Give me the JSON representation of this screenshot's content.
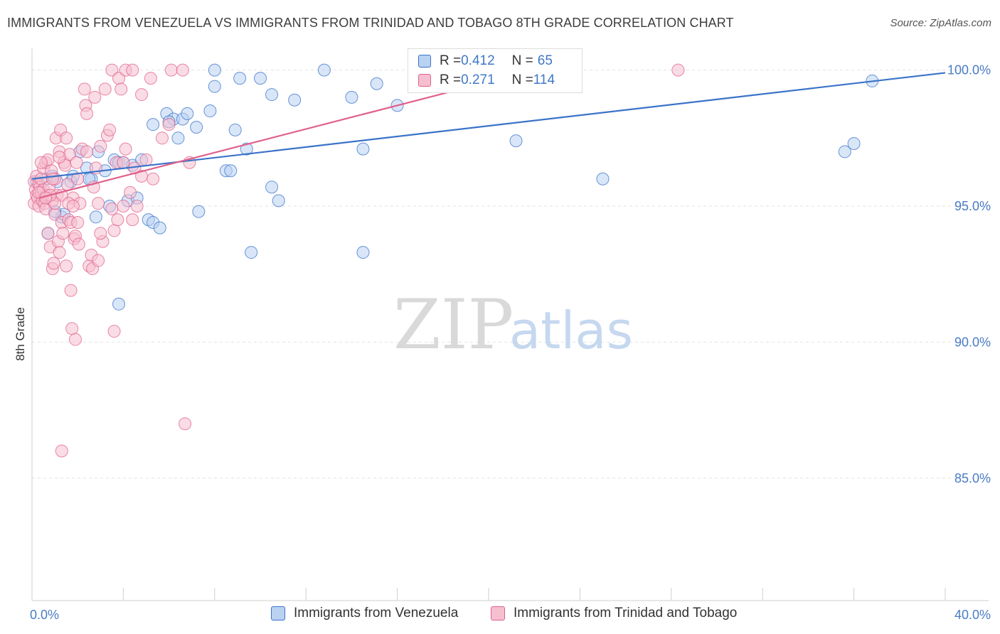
{
  "title": "IMMIGRANTS FROM VENEZUELA VS IMMIGRANTS FROM TRINIDAD AND TOBAGO 8TH GRADE CORRELATION CHART",
  "source": "Source: ZipAtlas.com",
  "watermark": {
    "zip": "ZIP",
    "atlas": "atlas"
  },
  "colors": {
    "blue": "#3a73c9",
    "blue_fill": "#b9d2f2",
    "pink": "#e0618c",
    "pink_fill": "#f6bfd0",
    "tick_label": "#4a7cc4",
    "grid": "#e2e2e2"
  },
  "legend": {
    "rows": [
      {
        "r_label": "R = ",
        "r_value": "0.412",
        "n_label": "N = ",
        "n_value": "65"
      },
      {
        "r_label": "R = ",
        "r_value": "0.271",
        "n_label": "N = ",
        "n_value": "114"
      }
    ]
  },
  "chart_data": {
    "type": "scatter",
    "title": "IMMIGRANTS FROM VENEZUELA VS IMMIGRANTS FROM TRINIDAD AND TOBAGO 8TH GRADE CORRELATION CHART",
    "xlabel": "",
    "ylabel": "8th Grade",
    "xlim": [
      0,
      40
    ],
    "ylim": [
      80.5,
      100.8
    ],
    "x_tick_labels": [
      "0.0%",
      "40.0%"
    ],
    "x_tick_values": [
      0,
      40
    ],
    "x_minor_ticks": [
      4,
      8,
      12,
      16,
      20,
      24,
      28,
      32,
      36
    ],
    "y_ticks": [
      {
        "value": 100,
        "label": "100.0%"
      },
      {
        "value": 95,
        "label": "95.0%"
      },
      {
        "value": 90,
        "label": "90.0%"
      },
      {
        "value": 85,
        "label": "85.0%"
      }
    ],
    "grid": "horizontal dashed",
    "legend_position": "bottom",
    "series": [
      {
        "name": "Immigrants from Venezuela",
        "color": "blue",
        "trend": {
          "x": [
            0,
            40
          ],
          "y": [
            96.0,
            99.9
          ]
        },
        "points": [
          [
            0.2,
            95.9
          ],
          [
            0.4,
            95.3
          ],
          [
            0.6,
            96.0
          ],
          [
            0.7,
            94.0
          ],
          [
            0.9,
            96.1
          ],
          [
            1.1,
            95.9
          ],
          [
            1.3,
            94.6
          ],
          [
            1.4,
            94.7
          ],
          [
            1.7,
            95.9
          ],
          [
            1.8,
            96.1
          ],
          [
            2.1,
            97.0
          ],
          [
            2.4,
            96.4
          ],
          [
            2.6,
            96.0
          ],
          [
            2.8,
            94.6
          ],
          [
            2.9,
            97.0
          ],
          [
            3.2,
            96.3
          ],
          [
            3.4,
            95.0
          ],
          [
            3.6,
            96.7
          ],
          [
            3.8,
            96.6
          ],
          [
            4.0,
            96.6
          ],
          [
            4.2,
            95.2
          ],
          [
            4.4,
            96.5
          ],
          [
            4.6,
            95.3
          ],
          [
            4.8,
            96.7
          ],
          [
            3.8,
            91.4
          ],
          [
            5.1,
            94.5
          ],
          [
            5.3,
            94.4
          ],
          [
            5.6,
            94.2
          ],
          [
            5.3,
            98.0
          ],
          [
            5.9,
            98.4
          ],
          [
            6.2,
            98.2
          ],
          [
            6.4,
            97.5
          ],
          [
            6.6,
            98.2
          ],
          [
            6.8,
            98.4
          ],
          [
            7.2,
            97.9
          ],
          [
            7.3,
            94.8
          ],
          [
            7.8,
            98.5
          ],
          [
            8.0,
            100.0
          ],
          [
            8.0,
            99.4
          ],
          [
            8.5,
            96.3
          ],
          [
            8.7,
            96.3
          ],
          [
            8.9,
            97.8
          ],
          [
            9.1,
            99.7
          ],
          [
            9.4,
            97.1
          ],
          [
            9.6,
            93.3
          ],
          [
            10.0,
            99.7
          ],
          [
            10.5,
            99.1
          ],
          [
            10.5,
            95.7
          ],
          [
            10.8,
            95.2
          ],
          [
            11.5,
            98.9
          ],
          [
            12.8,
            100.0
          ],
          [
            14.0,
            99.0
          ],
          [
            14.5,
            93.3
          ],
          [
            14.5,
            97.1
          ],
          [
            15.1,
            99.5
          ],
          [
            16.0,
            98.7
          ],
          [
            17.0,
            100.0
          ],
          [
            21.2,
            97.4
          ],
          [
            25.0,
            96.0
          ],
          [
            35.6,
            97.0
          ],
          [
            36.0,
            97.3
          ],
          [
            36.8,
            99.6
          ],
          [
            1.0,
            94.8
          ],
          [
            2.5,
            96.0
          ],
          [
            6.0,
            98.1
          ]
        ]
      },
      {
        "name": "Immigrants from Trinidad and Tobago",
        "color": "pink",
        "trend": {
          "x": [
            0.3,
            22.0
          ],
          "y": [
            95.3,
            100.0
          ]
        },
        "points": [
          [
            0.1,
            95.9
          ],
          [
            0.1,
            95.1
          ],
          [
            0.15,
            95.6
          ],
          [
            0.2,
            96.1
          ],
          [
            0.2,
            95.4
          ],
          [
            0.25,
            95.3
          ],
          [
            0.3,
            95.0
          ],
          [
            0.3,
            95.8
          ],
          [
            0.35,
            95.7
          ],
          [
            0.4,
            96.0
          ],
          [
            0.4,
            95.5
          ],
          [
            0.45,
            95.2
          ],
          [
            0.5,
            96.4
          ],
          [
            0.5,
            95.6
          ],
          [
            0.55,
            95.1
          ],
          [
            0.6,
            96.6
          ],
          [
            0.6,
            94.9
          ],
          [
            0.65,
            95.4
          ],
          [
            0.7,
            96.7
          ],
          [
            0.7,
            94.0
          ],
          [
            0.75,
            95.7
          ],
          [
            0.8,
            93.5
          ],
          [
            0.85,
            96.3
          ],
          [
            0.9,
            92.7
          ],
          [
            0.9,
            95.2
          ],
          [
            0.95,
            92.9
          ],
          [
            1.0,
            94.7
          ],
          [
            1.0,
            96.0
          ],
          [
            1.05,
            97.5
          ],
          [
            1.1,
            95.4
          ],
          [
            1.15,
            93.7
          ],
          [
            1.2,
            93.3
          ],
          [
            1.2,
            97.0
          ],
          [
            1.25,
            97.8
          ],
          [
            1.3,
            95.4
          ],
          [
            1.3,
            94.4
          ],
          [
            1.35,
            94.0
          ],
          [
            1.4,
            96.6
          ],
          [
            1.45,
            96.5
          ],
          [
            1.5,
            92.8
          ],
          [
            1.5,
            97.5
          ],
          [
            1.55,
            95.8
          ],
          [
            1.6,
            94.5
          ],
          [
            1.65,
            96.9
          ],
          [
            1.7,
            94.4
          ],
          [
            1.7,
            91.9
          ],
          [
            1.75,
            90.5
          ],
          [
            1.8,
            95.3
          ],
          [
            1.85,
            93.8
          ],
          [
            1.9,
            93.9
          ],
          [
            1.9,
            90.1
          ],
          [
            1.95,
            96.6
          ],
          [
            2.0,
            94.4
          ],
          [
            2.05,
            93.6
          ],
          [
            2.1,
            95.1
          ],
          [
            2.2,
            97.1
          ],
          [
            2.3,
            99.3
          ],
          [
            2.35,
            98.7
          ],
          [
            2.4,
            98.4
          ],
          [
            2.5,
            92.8
          ],
          [
            2.6,
            93.2
          ],
          [
            2.65,
            92.7
          ],
          [
            2.7,
            95.7
          ],
          [
            2.75,
            99.0
          ],
          [
            2.8,
            96.4
          ],
          [
            2.9,
            95.1
          ],
          [
            2.9,
            93.0
          ],
          [
            3.0,
            97.2
          ],
          [
            3.1,
            93.7
          ],
          [
            3.2,
            99.3
          ],
          [
            3.3,
            97.6
          ],
          [
            3.4,
            97.8
          ],
          [
            3.5,
            94.9
          ],
          [
            3.5,
            100.0
          ],
          [
            3.6,
            94.1
          ],
          [
            3.6,
            90.4
          ],
          [
            3.7,
            96.6
          ],
          [
            3.75,
            94.5
          ],
          [
            3.8,
            99.7
          ],
          [
            3.9,
            99.3
          ],
          [
            4.0,
            96.6
          ],
          [
            4.1,
            97.1
          ],
          [
            4.1,
            100.0
          ],
          [
            4.3,
            95.5
          ],
          [
            4.4,
            100.0
          ],
          [
            4.4,
            94.5
          ],
          [
            4.5,
            96.4
          ],
          [
            4.6,
            95.0
          ],
          [
            4.8,
            99.1
          ],
          [
            4.8,
            96.1
          ],
          [
            5.0,
            96.7
          ],
          [
            5.2,
            99.7
          ],
          [
            5.3,
            96.0
          ],
          [
            5.7,
            97.5
          ],
          [
            6.0,
            98.0
          ],
          [
            6.1,
            100.0
          ],
          [
            6.6,
            100.0
          ],
          [
            6.9,
            96.6
          ],
          [
            6.7,
            87.0
          ],
          [
            1.3,
            86.0
          ],
          [
            1.0,
            95.1
          ],
          [
            0.8,
            95.4
          ],
          [
            1.6,
            95.1
          ],
          [
            2.0,
            96.0
          ],
          [
            1.8,
            95.0
          ],
          [
            3.0,
            94.0
          ],
          [
            4.0,
            95.0
          ],
          [
            28.3,
            100.0
          ],
          [
            0.3,
            95.5
          ],
          [
            0.6,
            95.3
          ],
          [
            0.4,
            96.6
          ],
          [
            1.2,
            96.8
          ],
          [
            2.4,
            97.0
          ],
          [
            0.9,
            96.0
          ]
        ]
      }
    ]
  },
  "bottom_legend": [
    {
      "label": "Immigrants from Venezuela"
    },
    {
      "label": "Immigrants from Trinidad and Tobago"
    }
  ]
}
